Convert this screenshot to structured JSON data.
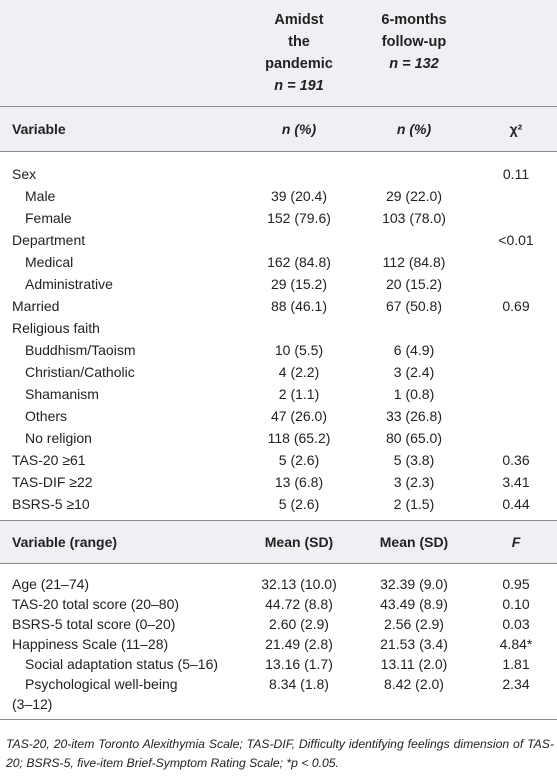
{
  "header": {
    "col2": {
      "l1": "Amidst",
      "l2": "the",
      "l3": "pandemic",
      "n": "n = 191"
    },
    "col3": {
      "l1": "6-months",
      "l2": "follow-up",
      "n": "n = 132"
    }
  },
  "section1": {
    "headers": {
      "variable": "Variable",
      "c2": "n (%)",
      "c3": "n (%)",
      "c4": "χ²"
    },
    "rows": [
      {
        "label": "Sex",
        "c2": "",
        "c3": "",
        "c4": "0.11"
      },
      {
        "label": "Male",
        "c2": "39 (20.4)",
        "c3": "29 (22.0)",
        "c4": ""
      },
      {
        "label": "Female",
        "c2": "152 (79.6)",
        "c3": "103 (78.0)",
        "c4": ""
      },
      {
        "label": "Department",
        "c2": "",
        "c3": "",
        "c4": "<0.01"
      },
      {
        "label": "Medical",
        "c2": "162 (84.8)",
        "c3": "112 (84.8)",
        "c4": ""
      },
      {
        "label": "Administrative",
        "c2": "29 (15.2)",
        "c3": "20 (15.2)",
        "c4": ""
      },
      {
        "label": "Married",
        "c2": "88 (46.1)",
        "c3": "67 (50.8)",
        "c4": "0.69"
      },
      {
        "label": "Religious faith",
        "c2": "",
        "c3": "",
        "c4": ""
      },
      {
        "label": "Buddhism/Taoism",
        "c2": "10 (5.5)",
        "c3": "6 (4.9)",
        "c4": ""
      },
      {
        "label": "Christian/Catholic",
        "c2": "4 (2.2)",
        "c3": "3 (2.4)",
        "c4": ""
      },
      {
        "label": "Shamanism",
        "c2": "2 (1.1)",
        "c3": "1 (0.8)",
        "c4": ""
      },
      {
        "label": "Others",
        "c2": "47 (26.0)",
        "c3": "33 (26.8)",
        "c4": ""
      },
      {
        "label": "No religion",
        "c2": "118 (65.2)",
        "c3": "80 (65.0)",
        "c4": ""
      },
      {
        "label": "TAS-20 ≥61",
        "c2": "5 (2.6)",
        "c3": "5 (3.8)",
        "c4": "0.36"
      },
      {
        "label": "TAS-DIF ≥22",
        "c2": "13 (6.8)",
        "c3": "3 (2.3)",
        "c4": "3.41"
      },
      {
        "label": "BSRS-5 ≥10",
        "c2": "5 (2.6)",
        "c3": "2 (1.5)",
        "c4": "0.44"
      }
    ]
  },
  "section2": {
    "headers": {
      "variable": "Variable (range)",
      "c2": "Mean (SD)",
      "c3": "Mean (SD)",
      "c4": "F"
    },
    "rows": [
      {
        "label": "Age (21–74)",
        "c2": "32.13 (10.0)",
        "c3": "32.39 (9.0)",
        "c4": "0.95"
      },
      {
        "label": "TAS-20 total score (20–80)",
        "c2": "44.72 (8.8)",
        "c3": "43.49 (8.9)",
        "c4": "0.10"
      },
      {
        "label": "BSRS-5 total score (0–20)",
        "c2": "2.60 (2.9)",
        "c3": "2.56 (2.9)",
        "c4": "0.03"
      },
      {
        "label": "Happiness Scale (11–28)",
        "c2": "21.49 (2.8)",
        "c3": "21.53 (3.4)",
        "c4": "4.84*"
      },
      {
        "label": "Social adaptation status (5–16)",
        "c2": "13.16 (1.7)",
        "c3": "13.11 (2.0)",
        "c4": "1.81"
      },
      {
        "label": "Psychological well-being",
        "c2": "8.34 (1.8)",
        "c3": "8.42 (2.0)",
        "c4": "2.34"
      },
      {
        "label": "(3–12)",
        "c2": "",
        "c3": "",
        "c4": ""
      }
    ]
  },
  "footnote": "TAS-20, 20-item Toronto Alexithymia Scale; TAS-DIF, Difficulty identifying feelings dimension of TAS-20; BSRS-5, five-item Brief-Symptom Rating Scale; *p < 0.05."
}
